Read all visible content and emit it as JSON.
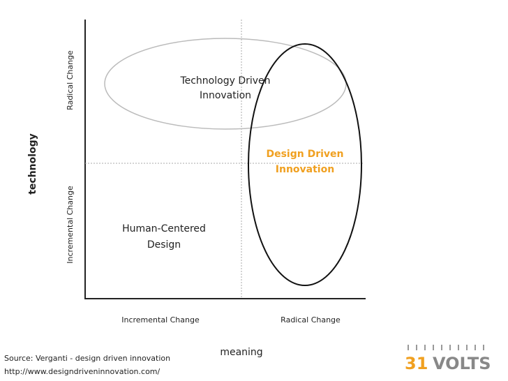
{
  "axes": {
    "y_title": "technology",
    "x_title": "meaning",
    "y_low": "Incremental Change",
    "y_high": "Radical Change",
    "x_low": "Incremental Change",
    "x_high": "Radical Change"
  },
  "regions": [
    {
      "lines": [
        "Technology Driven",
        "Innovation"
      ]
    },
    {
      "lines": [
        "Design Driven",
        "Innovation"
      ]
    },
    {
      "lines": [
        "Human-Centered",
        "Design"
      ]
    }
  ],
  "source": {
    "lines": [
      "Source: Verganti - design driven innovation",
      "http://www.designdriveninnovation.com/"
    ]
  },
  "logo": {
    "number": "31",
    "word": "VOLTS"
  }
}
